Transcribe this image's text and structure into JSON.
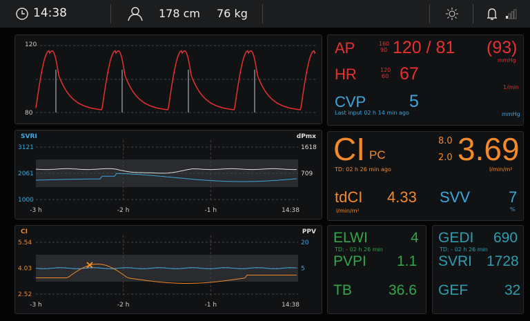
{
  "header": {
    "time": "14:38",
    "height": "178 cm",
    "weight": "76 kg"
  },
  "ap_wave": {
    "ymax": "120",
    "ymin": "80"
  },
  "svri_trend": {
    "left_label": "SVRI",
    "right_label": "dPmx",
    "left_ticks": [
      "3121",
      "2061",
      "1000"
    ],
    "right_ticks": [
      "1618",
      "709"
    ],
    "x_ticks": [
      "-3 h",
      "-2 h",
      "-1 h",
      "14:38"
    ]
  },
  "ci_trend": {
    "left_label": "CI",
    "right_label": "PPV",
    "left_ticks": [
      "5.54",
      "4.03",
      "2.52"
    ],
    "right_ticks": [
      "20",
      "5"
    ],
    "x_ticks": [
      "-3 h",
      "-2 h",
      "-1 h",
      "14:38"
    ]
  },
  "vitals": {
    "ap": {
      "label": "AP",
      "limit_high": "160",
      "limit_low": "90",
      "value": "120 / 81",
      "mean": "(93)",
      "unit": "mmHg"
    },
    "hr": {
      "label": "HR",
      "limit_high": "120",
      "limit_low": "60",
      "value": "67",
      "unit": "1/min"
    },
    "cvp": {
      "label": "CVP",
      "value": "5",
      "note": "Last input 02 h 14 min ago",
      "unit": "mmHg"
    }
  },
  "ci_panel": {
    "label": "CI",
    "sub": "PC",
    "note": "TD: 02 h 26 min ago",
    "limit_high": "8.0",
    "limit_low": "2.0",
    "value": "3.69",
    "unit": "l/min/m²",
    "tdci": {
      "label": "tdCI",
      "value": "4.33",
      "unit": "l/min/m²"
    },
    "svv": {
      "label": "SVV",
      "value": "7",
      "unit": "%"
    }
  },
  "elwi_panel": {
    "elwi": {
      "label": "ELWI",
      "value": "4",
      "note": "TD: - 02 h 26 min"
    },
    "pvpi": {
      "label": "PVPI",
      "value": "1.1"
    },
    "tb": {
      "label": "TB",
      "value": "36.6"
    }
  },
  "gedi_panel": {
    "gedi": {
      "label": "GEDI",
      "value": "690",
      "note": "TD: - 02 h 26 min"
    },
    "svri": {
      "label": "SVRI",
      "value": "1728"
    },
    "gef": {
      "label": "GEF",
      "value": "32"
    }
  }
}
